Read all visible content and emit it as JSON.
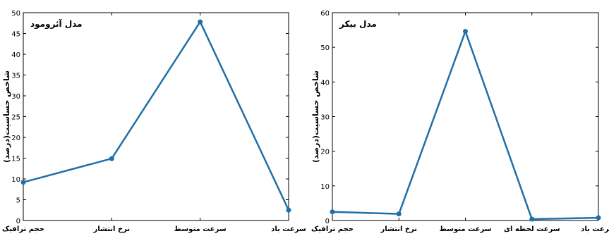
{
  "chart_data": [
    {
      "type": "line",
      "title": "مدل آئرومود",
      "ylabel": "شاخص حساسیت(درصد)",
      "xlabel": "",
      "categories": [
        "حجم ترافیک",
        "نرخ انتشار",
        "سرعت متوسط",
        "سرعت باد"
      ],
      "series": [
        {
          "values": [
            9.2,
            14.9,
            47.8,
            2.5
          ]
        }
      ],
      "ylim": [
        0,
        50
      ],
      "yticks": [
        0,
        5,
        10,
        15,
        20,
        25,
        30,
        35,
        40,
        45,
        50
      ],
      "grid": false,
      "color": "#1f6fa8"
    },
    {
      "type": "line",
      "title": "مدل بیکر",
      "ylabel": "شاخص حساسیت(درصد)",
      "xlabel": "",
      "categories": [
        "حجم ترافیک",
        "نرخ انتشار",
        "سرعت متوسط",
        "سرعت لحظه ای",
        "سرعت باد"
      ],
      "series": [
        {
          "values": [
            2.5,
            1.9,
            54.6,
            0.4,
            0.8
          ]
        }
      ],
      "ylim": [
        0,
        60
      ],
      "yticks": [
        0,
        10,
        20,
        30,
        40,
        50,
        60
      ],
      "grid": false,
      "color": "#1f6fa8"
    }
  ]
}
